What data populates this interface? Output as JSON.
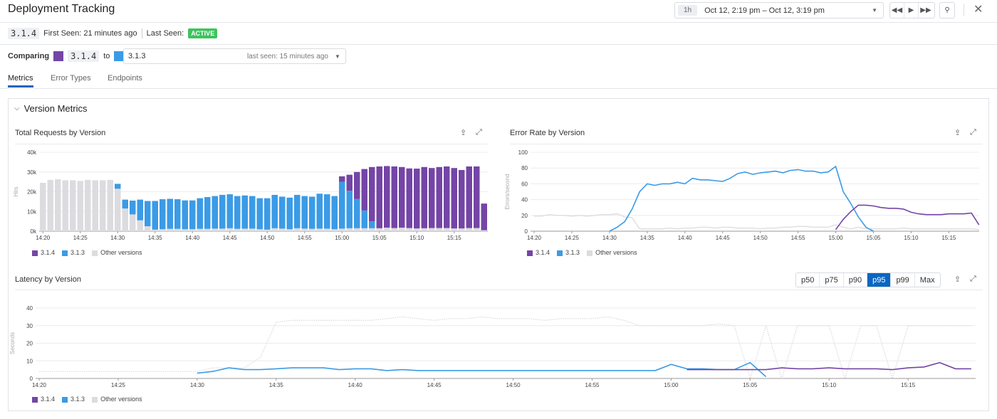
{
  "header": {
    "title": "Deployment Tracking",
    "time_preset": "1h",
    "time_range": "Oct 12, 2:19 pm – Oct 12, 3:19 pm",
    "icons": [
      "rewind-icon",
      "play-icon",
      "fast-forward-icon",
      "zoom-out-icon",
      "close-icon"
    ]
  },
  "version": {
    "name": "3.1.4",
    "first_seen": "First Seen: 21 minutes ago",
    "last_seen_label": "Last Seen:",
    "last_seen_badge": "ACTIVE"
  },
  "compare": {
    "label": "Comparing",
    "current": "3.1.4",
    "to": "to",
    "other": "3.1.3",
    "other_last_seen": "last seen: 15 minutes ago"
  },
  "tabs": [
    {
      "label": "Metrics",
      "active": true
    },
    {
      "label": "Error Types"
    },
    {
      "label": "Endpoints"
    }
  ],
  "section": {
    "title": "Version Metrics"
  },
  "colors": {
    "v314": "#7445a6",
    "v313": "#3b9be6",
    "other": "#dcdce0",
    "accent": "#0a66c2",
    "active": "#3ec35e"
  },
  "legend": [
    "3.1.4",
    "3.1.3",
    "Other versions"
  ],
  "latency_buttons": [
    {
      "label": "p50"
    },
    {
      "label": "p75"
    },
    {
      "label": "p90"
    },
    {
      "label": "p95",
      "selected": true
    },
    {
      "label": "p99"
    },
    {
      "label": "Max"
    }
  ],
  "chart_data": [
    {
      "type": "bar",
      "stacked": true,
      "title": "Total Requests by Version",
      "ylabel": "Hits",
      "ylim": [
        0,
        40000
      ],
      "yticks": [
        "0k",
        "10k",
        "20k",
        "30k",
        "40k"
      ],
      "xticks": [
        "14:20",
        "14:25",
        "14:30",
        "14:35",
        "14:40",
        "14:45",
        "14:50",
        "14:55",
        "15:00",
        "15:05",
        "15:10",
        "15:15"
      ],
      "x": [
        "14:20",
        "14:21",
        "14:22",
        "14:23",
        "14:24",
        "14:25",
        "14:26",
        "14:27",
        "14:28",
        "14:29",
        "14:30",
        "14:31",
        "14:32",
        "14:33",
        "14:34",
        "14:35",
        "14:36",
        "14:37",
        "14:38",
        "14:39",
        "14:40",
        "14:41",
        "14:42",
        "14:43",
        "14:44",
        "14:45",
        "14:46",
        "14:47",
        "14:48",
        "14:49",
        "14:50",
        "14:51",
        "14:52",
        "14:53",
        "14:54",
        "14:55",
        "14:56",
        "14:57",
        "14:58",
        "14:59",
        "15:00",
        "15:01",
        "15:02",
        "15:03",
        "15:04",
        "15:05",
        "15:06",
        "15:07",
        "15:08",
        "15:09",
        "15:10",
        "15:11",
        "15:12",
        "15:13",
        "15:14",
        "15:15",
        "15:16",
        "15:17",
        "15:18",
        "15:19"
      ],
      "series": [
        {
          "name": "Other versions",
          "values": [
            24500,
            26000,
            26300,
            25800,
            25800,
            25500,
            26000,
            25800,
            25800,
            26000,
            21500,
            11500,
            8500,
            5500,
            2500,
            800,
            1000,
            1200,
            1200,
            1000,
            1000,
            1200,
            1200,
            1300,
            1300,
            1500,
            1200,
            1300,
            1300,
            1000,
            800,
            1500,
            1300,
            1000,
            1500,
            1300,
            1200,
            1300,
            1300,
            1000,
            1300,
            1500,
            1500,
            1500,
            1500,
            1500,
            1800,
            1600,
            1800,
            1600,
            1400,
            1500,
            1600,
            1600,
            1600,
            1400,
            1400,
            1600,
            1600,
            500
          ]
        },
        {
          "name": "3.1.3",
          "values": [
            0,
            0,
            0,
            0,
            0,
            0,
            0,
            0,
            0,
            0,
            2500,
            4500,
            7000,
            10500,
            12800,
            14500,
            15200,
            15200,
            15000,
            14600,
            14600,
            15500,
            16100,
            16500,
            17100,
            17200,
            16600,
            16800,
            16500,
            15700,
            15900,
            16900,
            16200,
            16000,
            16900,
            16500,
            16300,
            17700,
            17400,
            16800,
            23700,
            19000,
            14800,
            9000,
            3500,
            0,
            0,
            0,
            0,
            0,
            0,
            0,
            0,
            0,
            0,
            0,
            0,
            0,
            0,
            0
          ]
        },
        {
          "name": "3.1.4",
          "values": [
            0,
            0,
            0,
            0,
            0,
            0,
            0,
            0,
            0,
            0,
            0,
            0,
            0,
            0,
            0,
            0,
            0,
            0,
            0,
            0,
            0,
            0,
            0,
            0,
            0,
            0,
            0,
            0,
            0,
            0,
            0,
            0,
            0,
            0,
            0,
            0,
            0,
            0,
            0,
            0,
            2800,
            8100,
            13700,
            21000,
            27500,
            31300,
            31200,
            31200,
            30700,
            30200,
            30300,
            31000,
            30400,
            30900,
            31200,
            30600,
            29600,
            31200,
            31200,
            13500
          ]
        }
      ]
    },
    {
      "type": "line",
      "title": "Error Rate by Version",
      "ylabel": "Errors/second",
      "ylim": [
        0,
        100
      ],
      "yticks": [
        "0",
        "20",
        "40",
        "60",
        "80",
        "100"
      ],
      "xticks": [
        "14:20",
        "14:25",
        "14:30",
        "14:35",
        "14:40",
        "14:45",
        "14:50",
        "14:55",
        "15:00",
        "15:05",
        "15:10",
        "15:15"
      ],
      "series": [
        {
          "name": "Other versions",
          "values": [
            19,
            19,
            21,
            20,
            20,
            19,
            20,
            19,
            20,
            21,
            21,
            22,
            18,
            17,
            3,
            3,
            3,
            3,
            4,
            3,
            4,
            4,
            5,
            5,
            4,
            5,
            5,
            4,
            4,
            4,
            3,
            4,
            4,
            5,
            5,
            6,
            6,
            5,
            5,
            5,
            8,
            5,
            3,
            5,
            3,
            3,
            3,
            3,
            3,
            4,
            3,
            3,
            3,
            3,
            3,
            3,
            3,
            3,
            3,
            2
          ]
        },
        {
          "name": "3.1.3",
          "values": [
            null,
            null,
            null,
            null,
            null,
            null,
            null,
            null,
            null,
            null,
            0,
            5,
            12,
            28,
            50,
            60,
            58,
            60,
            60,
            62,
            60,
            67,
            65,
            65,
            64,
            63,
            67,
            73,
            75,
            72,
            74,
            75,
            76,
            74,
            77,
            78,
            76,
            76,
            74,
            75,
            82,
            50,
            35,
            18,
            5,
            0,
            null,
            null,
            null,
            null,
            null,
            null,
            null,
            null,
            null,
            null,
            null,
            null,
            null,
            null
          ]
        },
        {
          "name": "3.1.4",
          "values": [
            null,
            null,
            null,
            null,
            null,
            null,
            null,
            null,
            null,
            null,
            null,
            null,
            null,
            null,
            null,
            null,
            null,
            null,
            null,
            null,
            null,
            null,
            null,
            null,
            null,
            null,
            null,
            null,
            null,
            null,
            null,
            null,
            null,
            null,
            null,
            null,
            null,
            null,
            null,
            null,
            2,
            15,
            25,
            33,
            33,
            32,
            30,
            29,
            29,
            28,
            24,
            22,
            21,
            21,
            21,
            22,
            22,
            22,
            23,
            8
          ]
        }
      ]
    },
    {
      "type": "line",
      "title": "Latency by Version",
      "ylabel": "Seconds",
      "ylim": [
        0,
        40
      ],
      "yticks": [
        "0",
        "10",
        "20",
        "30",
        "40"
      ],
      "xticks": [
        "14:20",
        "14:25",
        "14:30",
        "14:35",
        "14:40",
        "14:45",
        "14:50",
        "14:55",
        "15:00",
        "15:05",
        "15:10",
        "15:15"
      ],
      "series": [
        {
          "name": "Other versions",
          "dashed": true,
          "values": [
            4,
            4,
            4,
            4,
            4,
            4,
            4,
            4,
            4,
            4,
            4,
            6,
            6,
            6,
            12,
            32,
            33,
            33,
            33,
            33,
            33,
            33,
            34,
            35,
            34,
            33,
            34,
            34,
            35,
            34,
            34,
            34,
            33,
            34,
            34,
            34,
            35,
            33,
            30,
            30,
            30,
            30,
            30,
            31,
            30,
            0,
            30,
            0,
            30,
            30,
            30,
            0,
            30,
            30,
            0,
            30,
            30,
            30,
            30,
            30
          ]
        },
        {
          "name": "3.1.3",
          "values": [
            null,
            null,
            null,
            null,
            null,
            null,
            null,
            null,
            null,
            null,
            3,
            4,
            6,
            5,
            5,
            5.5,
            6,
            6,
            6,
            5,
            5.5,
            5.5,
            4.5,
            5,
            4.5,
            4.5,
            4.5,
            4.5,
            4.5,
            4.5,
            4.5,
            4.5,
            4.5,
            4.5,
            4.5,
            4.5,
            4.5,
            4.5,
            4.5,
            4.5,
            8,
            5.5,
            5.5,
            5,
            5,
            9,
            1,
            null,
            null,
            null,
            null,
            null,
            null,
            null,
            null,
            null,
            null,
            null,
            null,
            null
          ]
        },
        {
          "name": "3.1.4",
          "values": [
            null,
            null,
            null,
            null,
            null,
            null,
            null,
            null,
            null,
            null,
            null,
            null,
            null,
            null,
            null,
            null,
            null,
            null,
            null,
            null,
            null,
            null,
            null,
            null,
            null,
            null,
            null,
            null,
            null,
            null,
            null,
            null,
            null,
            null,
            null,
            null,
            null,
            null,
            null,
            null,
            null,
            5,
            5,
            5,
            5,
            5,
            5,
            6,
            5.5,
            5.5,
            6,
            5.5,
            5.5,
            5.5,
            5,
            6,
            6.5,
            9,
            5.5,
            5.5
          ]
        }
      ]
    }
  ]
}
